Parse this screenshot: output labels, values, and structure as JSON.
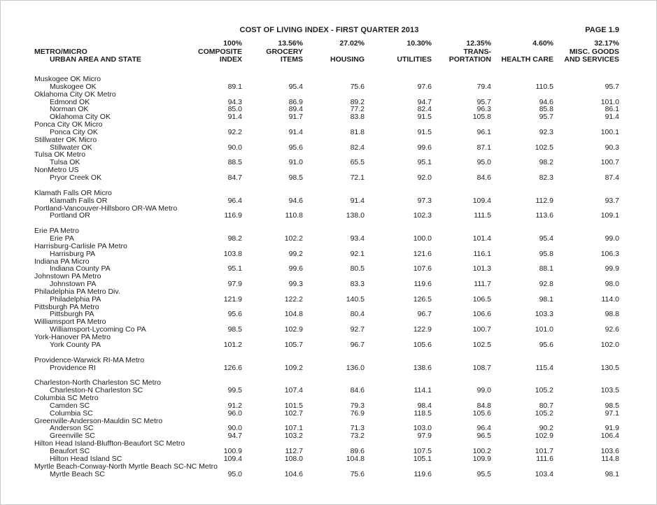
{
  "page": {
    "title": "COST OF LIVING INDEX - FIRST QUARTER 2013",
    "page_label": "PAGE 1.9"
  },
  "table": {
    "label_header": {
      "line_mid": "METRO/MICRO",
      "line_bot": "URBAN AREA AND STATE"
    },
    "columns": [
      {
        "pct": "100%",
        "mid": "COMPOSITE",
        "bot": "INDEX"
      },
      {
        "pct": "13.56%",
        "mid": "GROCERY",
        "bot": "ITEMS"
      },
      {
        "pct": "27.02%",
        "mid": "",
        "bot": "HOUSING"
      },
      {
        "pct": "10.30%",
        "mid": "",
        "bot": "UTILITIES"
      },
      {
        "pct": "12.35%",
        "mid": "TRANS-",
        "bot": "PORTATION"
      },
      {
        "pct": "4.60%",
        "mid": "",
        "bot": "HEALTH CARE"
      },
      {
        "pct": "32.17%",
        "mid": "MISC. GOODS",
        "bot": "AND SERVICES"
      }
    ],
    "rows": [
      {
        "type": "group",
        "label": "Muskogee OK Micro"
      },
      {
        "type": "data",
        "label": "Muskogee OK",
        "values": [
          "89.1",
          "95.4",
          "75.6",
          "97.6",
          "79.4",
          "110.5",
          "95.7"
        ]
      },
      {
        "type": "group",
        "label": "Oklahoma City OK Metro"
      },
      {
        "type": "data",
        "label": "Edmond OK",
        "values": [
          "94.3",
          "86.9",
          "89.2",
          "94.7",
          "95.7",
          "94.6",
          "101.0"
        ]
      },
      {
        "type": "data",
        "label": "Norman OK",
        "values": [
          "85.0",
          "89.4",
          "77.2",
          "82.4",
          "96.3",
          "85.8",
          "86.1"
        ]
      },
      {
        "type": "data",
        "label": "Oklahoma City OK",
        "values": [
          "91.4",
          "91.7",
          "83.8",
          "91.5",
          "105.8",
          "95.7",
          "91.4"
        ]
      },
      {
        "type": "group",
        "label": "Ponca City OK Micro"
      },
      {
        "type": "data",
        "label": "Ponca City OK",
        "values": [
          "92.2",
          "91.4",
          "81.8",
          "91.5",
          "96.1",
          "92.3",
          "100.1"
        ]
      },
      {
        "type": "group",
        "label": "Stillwater OK Micro"
      },
      {
        "type": "data",
        "label": "Stillwater OK",
        "values": [
          "90.0",
          "95.6",
          "82.4",
          "99.6",
          "87.1",
          "102.5",
          "90.3"
        ]
      },
      {
        "type": "group",
        "label": "Tulsa OK Metro"
      },
      {
        "type": "data",
        "label": "Tulsa OK",
        "values": [
          "88.5",
          "91.0",
          "65.5",
          "95.1",
          "95.0",
          "98.2",
          "100.7"
        ]
      },
      {
        "type": "group",
        "label": "NonMetro US"
      },
      {
        "type": "data",
        "label": "Pryor Creek OK",
        "values": [
          "84.7",
          "98.5",
          "72.1",
          "92.0",
          "84.6",
          "82.3",
          "87.4"
        ]
      },
      {
        "type": "spacer"
      },
      {
        "type": "group",
        "label": "Klamath Falls OR Micro"
      },
      {
        "type": "data",
        "label": "Klamath Falls OR",
        "values": [
          "96.4",
          "94.6",
          "91.4",
          "97.3",
          "109.4",
          "112.9",
          "93.7"
        ]
      },
      {
        "type": "group",
        "label": "Portland-Vancouver-Hillsboro OR-WA Metro"
      },
      {
        "type": "data",
        "label": "Portland OR",
        "values": [
          "116.9",
          "110.8",
          "138.0",
          "102.3",
          "111.5",
          "113.6",
          "109.1"
        ]
      },
      {
        "type": "spacer"
      },
      {
        "type": "group",
        "label": "Erie PA Metro"
      },
      {
        "type": "data",
        "label": "Erie PA",
        "values": [
          "98.2",
          "102.2",
          "93.4",
          "100.0",
          "101.4",
          "95.4",
          "99.0"
        ]
      },
      {
        "type": "group",
        "label": "Harrisburg-Carlisle PA Metro"
      },
      {
        "type": "data",
        "label": "Harrisburg PA",
        "values": [
          "103.8",
          "99.2",
          "92.1",
          "121.6",
          "116.1",
          "95.8",
          "106.3"
        ]
      },
      {
        "type": "group",
        "label": "Indiana PA Micro"
      },
      {
        "type": "data",
        "label": "Indiana County PA",
        "values": [
          "95.1",
          "99.6",
          "80.5",
          "107.6",
          "101.3",
          "88.1",
          "99.9"
        ]
      },
      {
        "type": "group",
        "label": "Johnstown PA Metro"
      },
      {
        "type": "data",
        "label": "Johnstown PA",
        "values": [
          "97.9",
          "99.3",
          "83.3",
          "119.6",
          "111.7",
          "92.8",
          "98.0"
        ]
      },
      {
        "type": "group",
        "label": "Philadelphia PA Metro Div."
      },
      {
        "type": "data",
        "label": "Philadelphia PA",
        "values": [
          "121.9",
          "122.2",
          "140.5",
          "126.5",
          "106.5",
          "98.1",
          "114.0"
        ]
      },
      {
        "type": "group",
        "label": "Pittsburgh PA Metro"
      },
      {
        "type": "data",
        "label": "Pittsburgh PA",
        "values": [
          "95.6",
          "104.8",
          "80.4",
          "96.7",
          "106.6",
          "103.3",
          "98.8"
        ]
      },
      {
        "type": "group",
        "label": "Williamsport PA Metro"
      },
      {
        "type": "data",
        "label": "Williamsport-Lycoming Co PA",
        "values": [
          "98.5",
          "102.9",
          "92.7",
          "122.9",
          "100.7",
          "101.0",
          "92.6"
        ]
      },
      {
        "type": "group",
        "label": "York-Hanover PA Metro"
      },
      {
        "type": "data",
        "label": "York County PA",
        "values": [
          "101.2",
          "105.7",
          "96.7",
          "105.6",
          "102.5",
          "95.6",
          "102.0"
        ]
      },
      {
        "type": "spacer"
      },
      {
        "type": "group",
        "label": "Providence-Warwick RI-MA Metro"
      },
      {
        "type": "data",
        "label": "Providence RI",
        "values": [
          "126.6",
          "109.2",
          "136.0",
          "138.6",
          "108.7",
          "115.4",
          "130.5"
        ]
      },
      {
        "type": "spacer"
      },
      {
        "type": "group",
        "label": "Charleston-North Charleston SC Metro"
      },
      {
        "type": "data",
        "label": "Charleston-N Charleston SC",
        "values": [
          "99.5",
          "107.4",
          "84.6",
          "114.1",
          "99.0",
          "105.2",
          "103.5"
        ]
      },
      {
        "type": "group",
        "label": "Columbia SC Metro"
      },
      {
        "type": "data",
        "label": "Camden SC",
        "values": [
          "91.2",
          "101.5",
          "79.3",
          "98.4",
          "84.8",
          "80.7",
          "98.5"
        ]
      },
      {
        "type": "data",
        "label": "Columbia SC",
        "values": [
          "96.0",
          "102.7",
          "76.9",
          "118.5",
          "105.6",
          "105.2",
          "97.1"
        ]
      },
      {
        "type": "group",
        "label": "Greenville-Anderson-Mauldin SC Metro"
      },
      {
        "type": "data",
        "label": "Anderson SC",
        "values": [
          "90.0",
          "107.1",
          "71.3",
          "103.0",
          "96.4",
          "90.2",
          "91.9"
        ]
      },
      {
        "type": "data",
        "label": "Greenville SC",
        "values": [
          "94.7",
          "103.2",
          "73.2",
          "97.9",
          "96.5",
          "102.9",
          "106.4"
        ]
      },
      {
        "type": "group",
        "label": "Hilton Head Island-Bluffton-Beaufort SC Metro"
      },
      {
        "type": "data",
        "label": "Beaufort SC",
        "values": [
          "100.9",
          "112.7",
          "89.6",
          "107.5",
          "100.2",
          "101.7",
          "103.6"
        ]
      },
      {
        "type": "data",
        "label": "Hilton Head Island SC",
        "values": [
          "109.4",
          "108.0",
          "104.8",
          "105.1",
          "109.9",
          "111.6",
          "114.8"
        ]
      },
      {
        "type": "group",
        "label": "Myrtle Beach-Conway-North Myrtle Beach SC-NC Metro"
      },
      {
        "type": "data",
        "label": "Myrtle Beach SC",
        "values": [
          "95.0",
          "104.6",
          "75.6",
          "119.6",
          "95.5",
          "103.4",
          "98.1"
        ]
      }
    ]
  }
}
